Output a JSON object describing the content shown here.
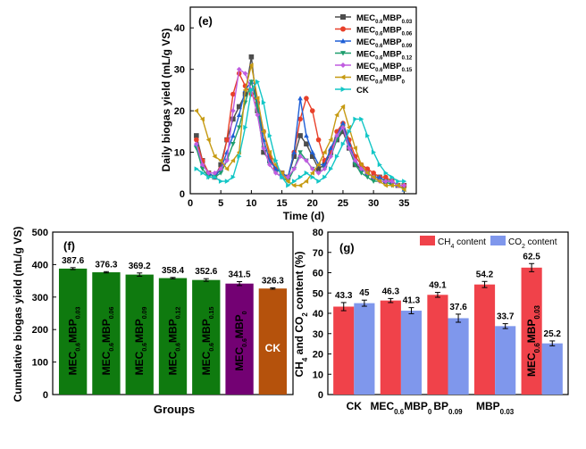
{
  "chart_data": [
    {
      "type": "line",
      "panel_label": "(e)",
      "xlabel": "Time (d)",
      "ylabel": "Daily biogas yield (mL/g VS)",
      "xlim": [
        0,
        37
      ],
      "ylim": [
        0,
        45
      ],
      "xticks": [
        0,
        5,
        10,
        15,
        20,
        25,
        30,
        35
      ],
      "yticks": [
        0,
        10,
        20,
        30,
        40
      ],
      "grid": false,
      "legend_position": "top-right",
      "x": [
        1,
        2,
        3,
        4,
        5,
        6,
        7,
        8,
        9,
        10,
        11,
        12,
        13,
        14,
        15,
        16,
        17,
        18,
        19,
        20,
        21,
        22,
        23,
        24,
        25,
        26,
        27,
        28,
        29,
        30,
        31,
        32,
        33,
        34,
        35
      ],
      "series": [
        {
          "name": "MEC0.6MBP0.03",
          "label_main": "MEC",
          "label_sub1": "0.6",
          "label_mid": "MBP",
          "label_sub2": "0.03",
          "color": "#4d4d4d",
          "marker": "square",
          "values": [
            14,
            8,
            5,
            4,
            7,
            13,
            18,
            21,
            24,
            33,
            20,
            10,
            8,
            6,
            5,
            4,
            9,
            14,
            12,
            9,
            6,
            7,
            10,
            13,
            15,
            11,
            7,
            6,
            5,
            4,
            4,
            3,
            3,
            2,
            2
          ]
        },
        {
          "name": "MEC0.6MBP0.06",
          "label_main": "MEC",
          "label_sub1": "0.6",
          "label_mid": "MBP",
          "label_sub2": "0.06",
          "color": "#e8402a",
          "marker": "circle",
          "values": [
            13,
            8,
            5,
            4,
            6,
            13,
            24,
            29,
            26,
            24,
            22,
            15,
            9,
            6,
            5,
            4,
            10,
            18,
            23,
            20,
            13,
            8,
            10,
            15,
            17,
            13,
            9,
            7,
            6,
            5,
            4,
            4,
            3,
            2,
            2
          ]
        },
        {
          "name": "MEC0.6MBP0.09",
          "label_main": "MEC",
          "label_sub1": "0.6",
          "label_mid": "MBP",
          "label_sub2": "0.09",
          "color": "#1f5fd6",
          "marker": "triangle-up",
          "values": [
            12,
            7,
            5,
            4,
            6,
            10,
            14,
            19,
            25,
            27,
            22,
            13,
            8,
            6,
            5,
            4,
            10,
            23,
            14,
            10,
            7,
            7,
            11,
            14,
            17,
            12,
            8,
            6,
            5,
            4,
            4,
            3,
            3,
            2,
            1
          ]
        },
        {
          "name": "MEC0.6MBP0.12",
          "label_main": "MEC",
          "label_sub1": "0.6",
          "label_mid": "MBP",
          "label_sub2": "0.12",
          "color": "#1e9e6e",
          "marker": "triangle-down",
          "values": [
            11,
            6,
            4,
            4,
            5,
            8,
            12,
            16,
            22,
            27,
            21,
            11,
            7,
            5,
            4,
            3,
            6,
            10,
            8,
            6,
            5,
            6,
            9,
            13,
            16,
            11,
            7,
            5,
            4,
            3,
            3,
            3,
            2,
            2,
            1
          ]
        },
        {
          "name": "MEC0.6MBP0.15",
          "label_main": "MEC",
          "label_sub1": "0.6",
          "label_mid": "MBP",
          "label_sub2": "0.15",
          "color": "#c05ce0",
          "marker": "diamond",
          "values": [
            12,
            7,
            5,
            5,
            6,
            8,
            20,
            30,
            29,
            25,
            19,
            11,
            7,
            5,
            4,
            4,
            6,
            9,
            8,
            6,
            5,
            6,
            9,
            14,
            16,
            11,
            8,
            6,
            5,
            4,
            3,
            3,
            3,
            2,
            2
          ]
        },
        {
          "name": "MEC0.6MBP0",
          "label_main": "MEC",
          "label_sub1": "0.6",
          "label_mid": "MBP",
          "label_sub2": "0",
          "color": "#c69a12",
          "marker": "triangle-left",
          "values": [
            20,
            18,
            13,
            9,
            8,
            6,
            8,
            10,
            25,
            31,
            23,
            15,
            10,
            7,
            5,
            3,
            2,
            2,
            3,
            5,
            7,
            10,
            13,
            19,
            21,
            16,
            11,
            7,
            5,
            4,
            3,
            2,
            2,
            2,
            1
          ]
        },
        {
          "name": "CK",
          "label_main": "CK",
          "label_sub1": "",
          "label_mid": "",
          "label_sub2": "",
          "color": "#12c6c6",
          "marker": "triangle-right",
          "values": [
            6,
            5,
            4,
            4,
            3,
            3,
            4,
            9,
            16,
            25,
            27,
            22,
            14,
            8,
            4,
            2,
            3,
            4,
            5,
            4,
            3,
            4,
            6,
            9,
            12,
            15,
            18,
            18,
            14,
            10,
            7,
            5,
            4,
            3,
            3
          ]
        }
      ]
    },
    {
      "type": "bar",
      "panel_label": "(f)",
      "xlabel": "Groups",
      "ylabel": "Cumulative biogas yield (mL/g VS)",
      "ylim": [
        0,
        500
      ],
      "yticks": [
        0,
        100,
        200,
        300,
        400,
        500
      ],
      "categories": [
        {
          "main": "MEC",
          "sub1": "0.6",
          "mid": "MBP",
          "sub2": "0.03"
        },
        {
          "main": "MEC",
          "sub1": "0.6",
          "mid": "MBP",
          "sub2": "0.06"
        },
        {
          "main": "MEC",
          "sub1": "0.6",
          "mid": "MBP",
          "sub2": "0.09"
        },
        {
          "main": "MEC",
          "sub1": "0.6",
          "mid": "MBP",
          "sub2": "0.12"
        },
        {
          "main": "MEC",
          "sub1": "0.6",
          "mid": "MBP",
          "sub2": "0.15"
        },
        {
          "main": "MEC",
          "sub1": "0.6",
          "mid": "MBP",
          "sub2": "0"
        },
        {
          "main": "CK",
          "sub1": "",
          "mid": "",
          "sub2": ""
        }
      ],
      "values": [
        387.6,
        376.3,
        369.2,
        358.4,
        352.6,
        341.5,
        326.3
      ],
      "value_labels": [
        "387.6",
        "376.3",
        "369.2",
        "358.4",
        "352.6",
        "341.5",
        "326.3"
      ],
      "errors": [
        3,
        2,
        5,
        2,
        4,
        6,
        2
      ],
      "colors": [
        "#0f7a0f",
        "#0f7a0f",
        "#0f7a0f",
        "#0f7a0f",
        "#0f7a0f",
        "#730173",
        "#b5520c"
      ]
    },
    {
      "type": "bar",
      "panel_label": "(g)",
      "ylabel_parts": {
        "a": "CH",
        "a_sub": "4",
        "b": " and CO",
        "b_sub": "2",
        "c": " content (%)"
      },
      "ylim": [
        0,
        80
      ],
      "yticks": [
        0,
        10,
        20,
        30,
        40,
        50,
        60,
        70,
        80
      ],
      "legend_position": "top",
      "categories": [
        {
          "main": "CK",
          "sub": "",
          "mid": "",
          "sub2": ""
        },
        {
          "main": "MEC",
          "sub": "0.6",
          "mid": "MBP",
          "sub2": "0"
        },
        {
          "main": "BP",
          "sub": "0.09",
          "mid": "",
          "sub2": ""
        },
        {
          "main": "MBP",
          "sub": "0.03",
          "mid": "",
          "sub2": ""
        },
        {
          "main": "MEC",
          "sub": "0.6",
          "mid": "MBP",
          "sub2": "0.03"
        }
      ],
      "x_tick_labels_shown": [
        true,
        true,
        true,
        true,
        false
      ],
      "in_bar_label_index": 4,
      "series": [
        {
          "name": "CH4 content",
          "name_main": "CH",
          "name_sub": "4",
          "name_tail": " content",
          "color": "#f0424a",
          "values": [
            43.3,
            46.3,
            49.1,
            54.2,
            62.5
          ],
          "value_labels": [
            "43.3",
            "46.3",
            "49.1",
            "54.2",
            "62.5"
          ],
          "errors": [
            2,
            1,
            1.2,
            1.5,
            2
          ]
        },
        {
          "name": "CO2 content",
          "name_main": "CO",
          "name_sub": "2",
          "name_tail": " content",
          "color": "#7f97ec",
          "values": [
            45,
            41.3,
            37.6,
            33.7,
            25.2
          ],
          "value_labels": [
            "45",
            "41.3",
            "37.6",
            "33.7",
            "25.2"
          ],
          "errors": [
            1.5,
            1.5,
            2,
            1.2,
            1.2
          ]
        }
      ]
    }
  ]
}
